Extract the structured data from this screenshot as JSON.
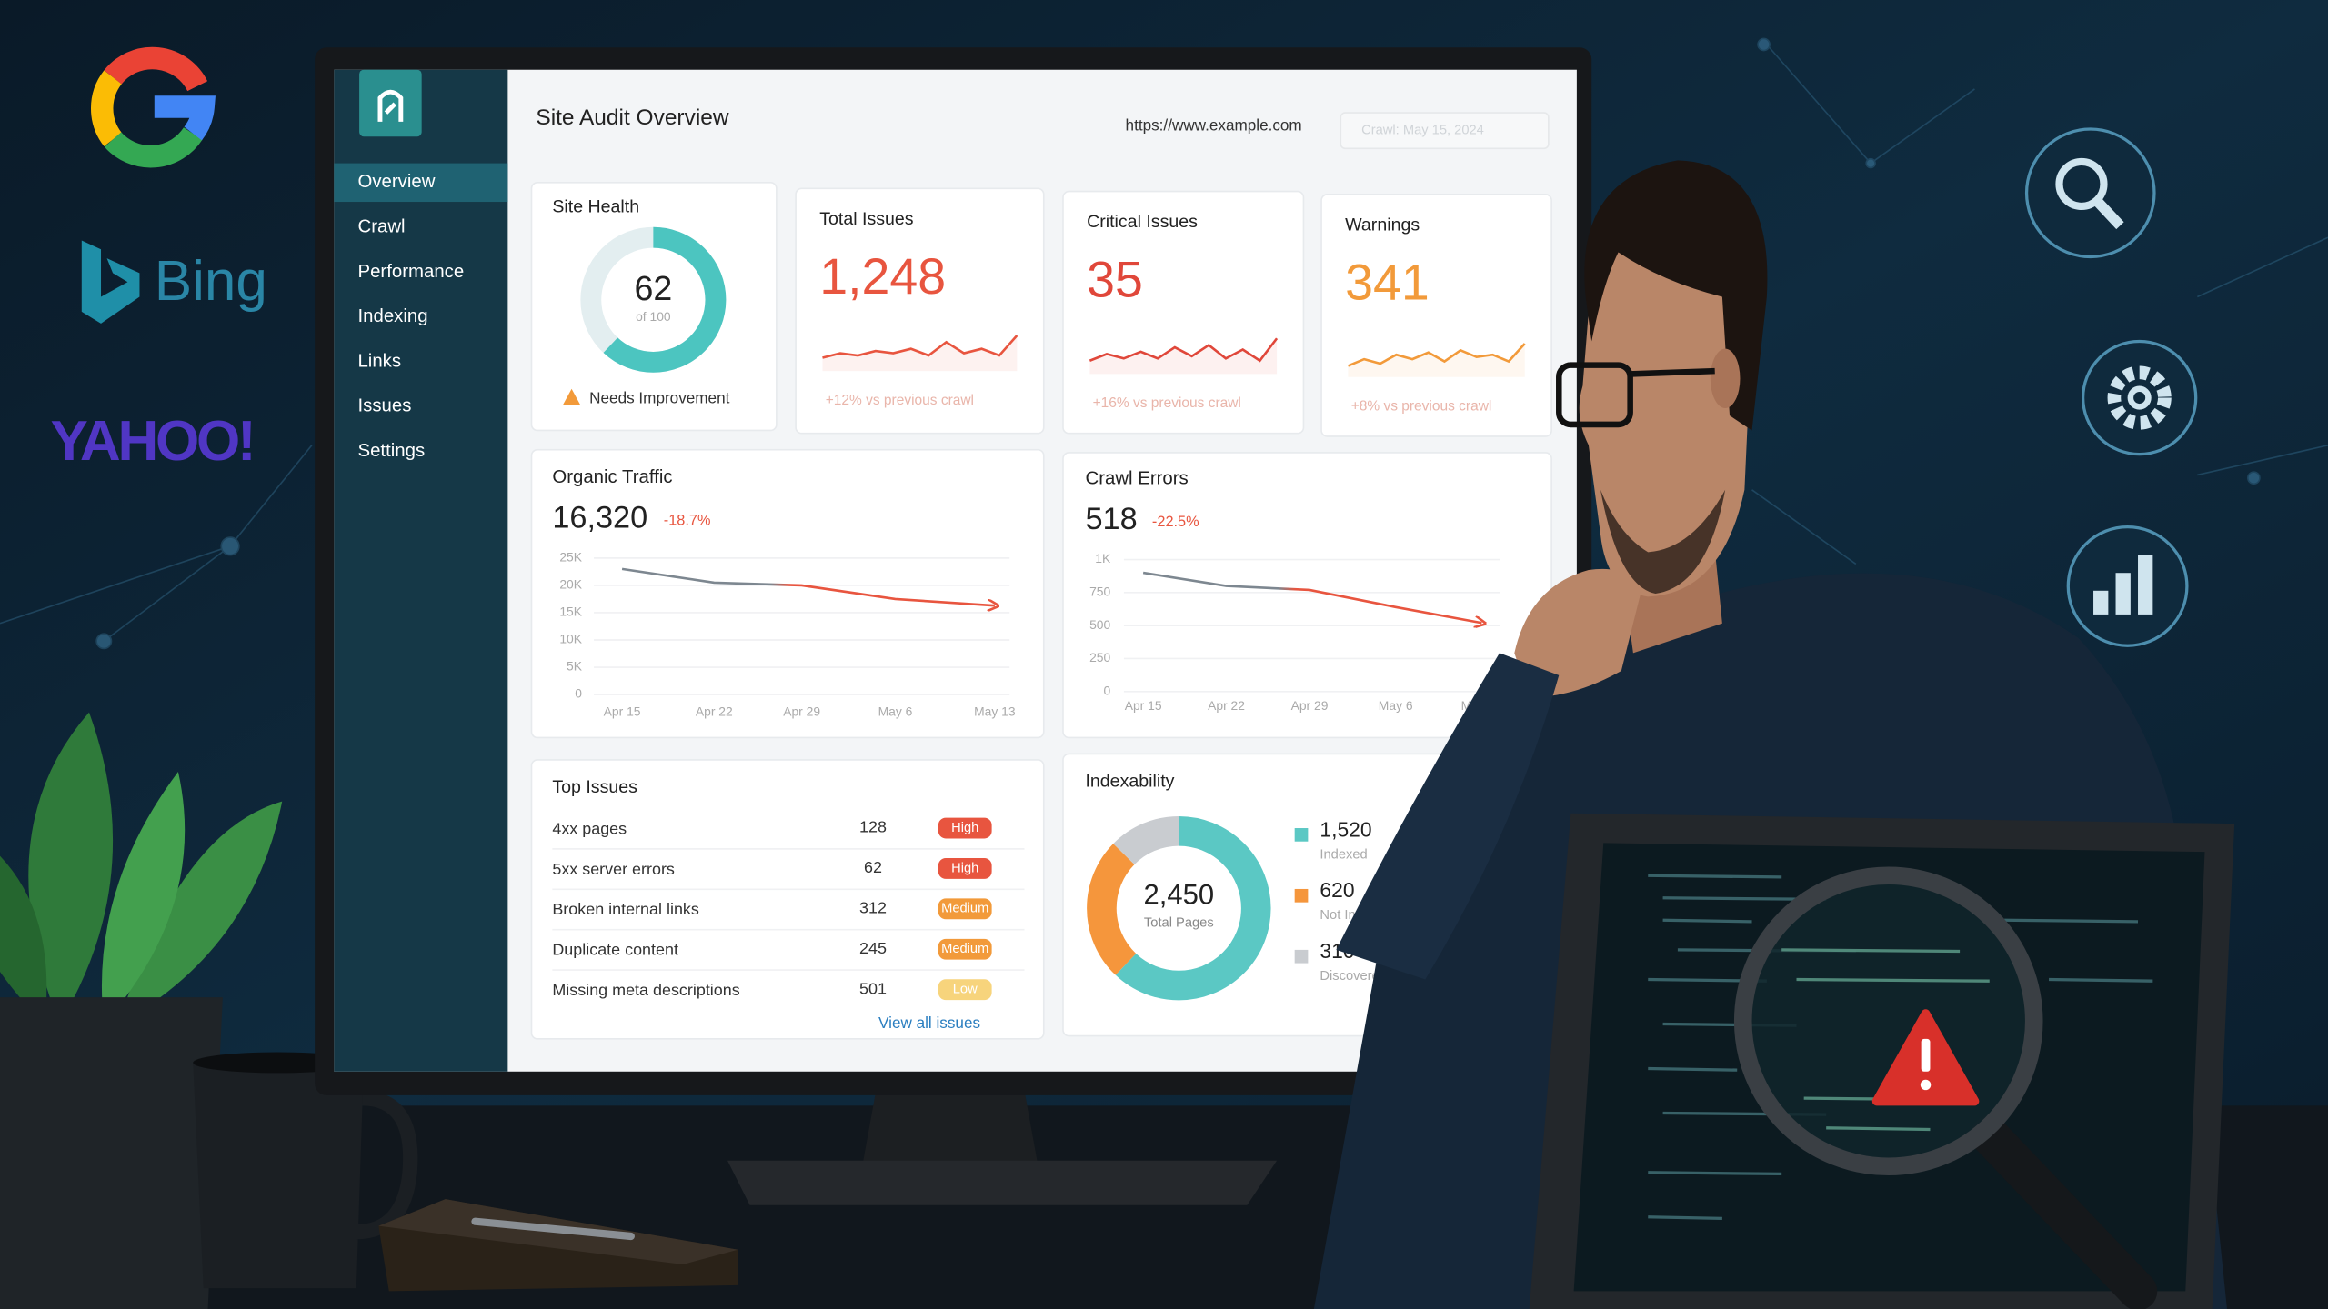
{
  "logos": {
    "bing": "Bing",
    "yahoo": "YAHOO!"
  },
  "sidebar": {
    "items": [
      "Overview",
      "Crawl",
      "Performance",
      "Indexing",
      "Links",
      "Issues",
      "Settings"
    ],
    "active": 0
  },
  "header": {
    "title": "Site Audit Overview",
    "url": "https://www.example.com",
    "crawl": "Crawl: May 15, 2024"
  },
  "site_health": {
    "title": "Site Health",
    "score": 62,
    "max": 100,
    "max_label": "of 100",
    "status": "Needs Improvement",
    "color": "#4cc5c0"
  },
  "trend_ylim": [
    0,
    10
  ],
  "kpis": [
    {
      "title": "Total Issues",
      "value": 1248,
      "value_label": "1,248",
      "change": "+12% vs previous crawl",
      "color": "#e8553f",
      "trend": [
        3,
        4,
        3.5,
        4.5,
        4,
        5,
        3.5,
        6.5,
        4,
        5,
        3.5,
        8
      ]
    },
    {
      "title": "Critical Issues",
      "value": 35,
      "change": "+16% vs previous crawl",
      "color": "#e0473a",
      "trend": [
        3,
        4.5,
        3.5,
        5,
        3.5,
        6,
        4,
        6.5,
        3.5,
        5.5,
        3,
        8
      ]
    },
    {
      "title": "Warnings",
      "value": 341,
      "change": "+8% vs previous crawl",
      "color": "#f29a3a",
      "trend": [
        2.5,
        4,
        3,
        5,
        4,
        5.5,
        3.5,
        6,
        4.5,
        5,
        3.5,
        7.5
      ]
    }
  ],
  "charts": [
    {
      "type": "line",
      "title": "Organic Traffic",
      "value": 16320,
      "value_label": "16,320",
      "change": "-18.7%",
      "color": "#e8553f",
      "categories": [
        "Apr 15",
        "Apr 22",
        "Apr 29",
        "May 6",
        "May 13"
      ],
      "values": [
        23000,
        20500,
        20000,
        17500,
        16300
      ],
      "ylim": [
        0,
        25000
      ],
      "yticks": [
        0,
        {
          "value": 5000,
          "label": "5K"
        },
        {
          "value": 10000,
          "label": "10K"
        },
        {
          "value": 15000,
          "label": "15K"
        },
        {
          "value": 20000,
          "label": "20K"
        },
        {
          "value": 25000,
          "label": "25K"
        }
      ],
      "grid": true
    },
    {
      "type": "line",
      "title": "Crawl Errors",
      "value": 518,
      "change": "-22.5%",
      "color": "#e8553f",
      "categories": [
        "Apr 15",
        "Apr 22",
        "Apr 29",
        "May 6",
        "May 13"
      ],
      "values": [
        900,
        800,
        770,
        640,
        520
      ],
      "ylim": [
        0,
        1000
      ],
      "yticks": [
        0,
        250,
        500,
        750,
        {
          "value": 1000,
          "label": "1K"
        }
      ],
      "grid": true
    }
  ],
  "top_issues": {
    "title": "Top Issues",
    "rows": [
      {
        "name": "4xx pages",
        "count": 128,
        "severity": "High"
      },
      {
        "name": "5xx server errors",
        "count": 62,
        "severity": "High"
      },
      {
        "name": "Broken internal links",
        "count": 312,
        "severity": "Medium"
      },
      {
        "name": "Duplicate content",
        "count": 245,
        "severity": "Medium"
      },
      {
        "name": "Missing meta descriptions",
        "count": 501,
        "severity": "Low"
      }
    ],
    "severity_colors": {
      "High": "#e8553f",
      "Medium": "#f29a3a",
      "Low": "#f7d47c"
    },
    "link": "View all issues"
  },
  "indexability": {
    "type": "pie",
    "title": "Indexability",
    "total": 2450,
    "total_label": "2,450",
    "total_caption": "Total Pages",
    "segments": [
      {
        "name": "Indexed",
        "value": 1520,
        "value_label": "1,520",
        "color": "#5bc8c4"
      },
      {
        "name": "Not Indexed",
        "value": 620,
        "color": "#f5963c"
      },
      {
        "name": "Discovered",
        "value": 310,
        "color": "#c9ccd0"
      }
    ]
  }
}
